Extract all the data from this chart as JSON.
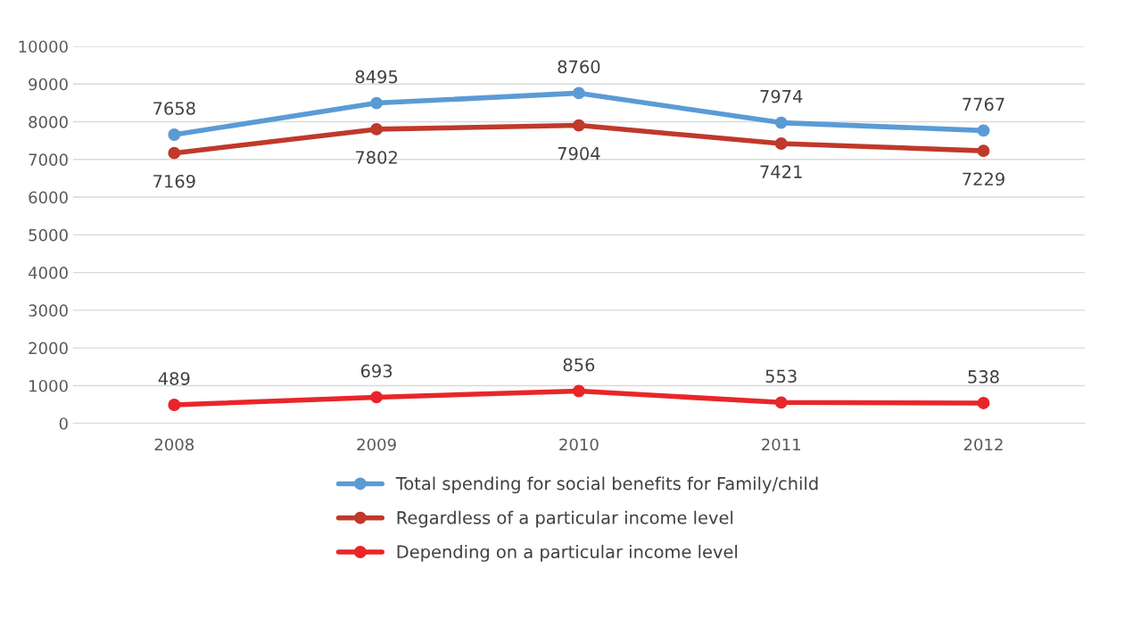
{
  "chart_data": {
    "type": "line",
    "categories": [
      "2008",
      "2009",
      "2010",
      "2011",
      "2012"
    ],
    "series": [
      {
        "name": "Total spending for social benefits for Family/child",
        "color": "#5b9bd5",
        "values": [
          7658,
          8495,
          8760,
          7974,
          7767
        ]
      },
      {
        "name": "Regardless of a particular income level",
        "color": "#c0392b",
        "values": [
          7169,
          7802,
          7904,
          7421,
          7229
        ]
      },
      {
        "name": "Depending on a particular income level",
        "color": "#e8262a",
        "values": [
          489,
          693,
          856,
          553,
          538
        ]
      }
    ],
    "ylim": [
      0,
      10000
    ],
    "yticks": [
      0,
      1000,
      2000,
      3000,
      4000,
      5000,
      6000,
      7000,
      8000,
      9000,
      10000
    ],
    "grid": "y",
    "legend": "bottom",
    "marker": "circle",
    "line_style": "solid",
    "data_labels": true
  }
}
